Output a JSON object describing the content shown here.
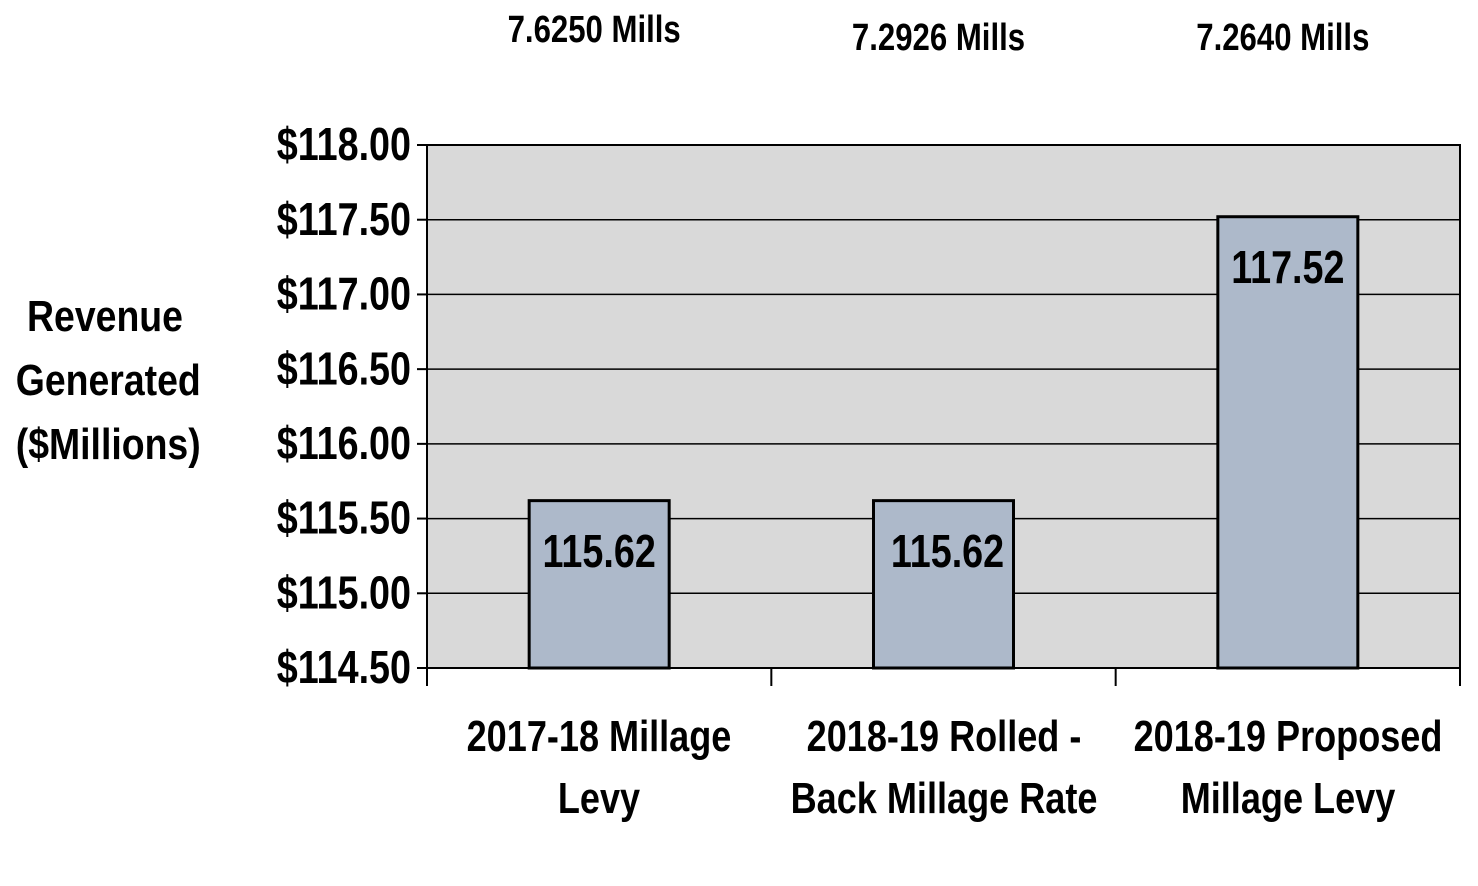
{
  "chart_data": {
    "type": "bar",
    "y_label": "Revenue Generated ($Millions)",
    "annotations": [
      "7.6250 Mills",
      "7.2926 Mills",
      "7.2640 Mills"
    ],
    "categories": [
      "2017-18 Millage Levy",
      "2018-19 Rolled - Back Millage Rate",
      "2018-19 Proposed Millage Levy"
    ],
    "values": [
      115.62,
      115.62,
      117.52
    ],
    "color": "#adb9ca",
    "ylim": [
      114.5,
      118
    ],
    "yticks": [
      {
        "value": 114.5,
        "label": "$114.50"
      },
      {
        "value": 115,
        "label": "$115.00"
      },
      {
        "value": 115.5,
        "label": "$115.50"
      },
      {
        "value": 116,
        "label": "$116.00"
      },
      {
        "value": 116.5,
        "label": "$116.50"
      },
      {
        "value": 117,
        "label": "$117.00"
      },
      {
        "value": 117.5,
        "label": "$117.50"
      },
      {
        "value": 118,
        "label": "$118.00"
      }
    ],
    "grid": true
  }
}
